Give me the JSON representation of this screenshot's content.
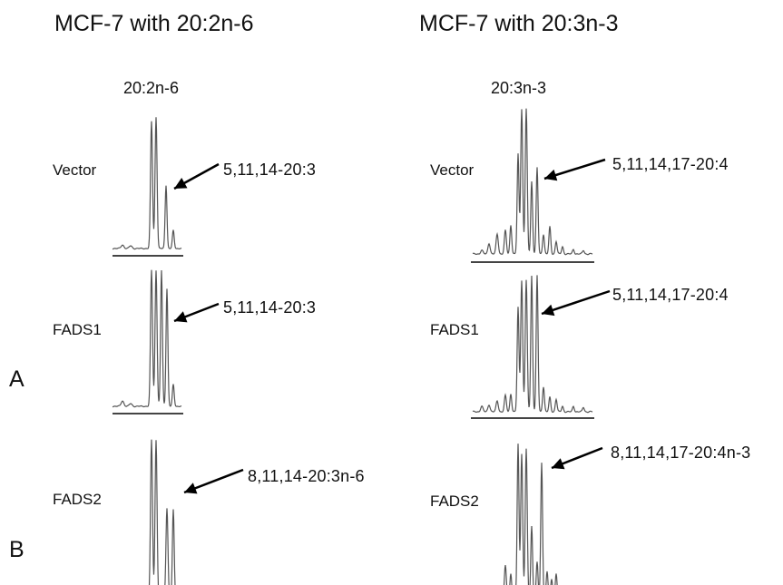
{
  "figure": {
    "left_title": "MCF-7 with 20:2n-6",
    "right_title": "MCF-7 with 20:3n-3",
    "left_substrate": "20:2n-6",
    "right_substrate": "20:3n-3",
    "panel_labels": [
      "A",
      "B"
    ],
    "rows": [
      {
        "label": "Vector",
        "left_peak_label": "5,11,14-20:3",
        "right_peak_label": "5,11,14,17-20:4"
      },
      {
        "label": "FADS1",
        "left_peak_label": "5,11,14-20:3",
        "right_peak_label": "5,11,14,17-20:4"
      },
      {
        "label": "FADS2",
        "left_peak_label": "8,11,14-20:3n-6",
        "right_peak_label": "8,11,14,17-20:4n-3"
      }
    ]
  }
}
